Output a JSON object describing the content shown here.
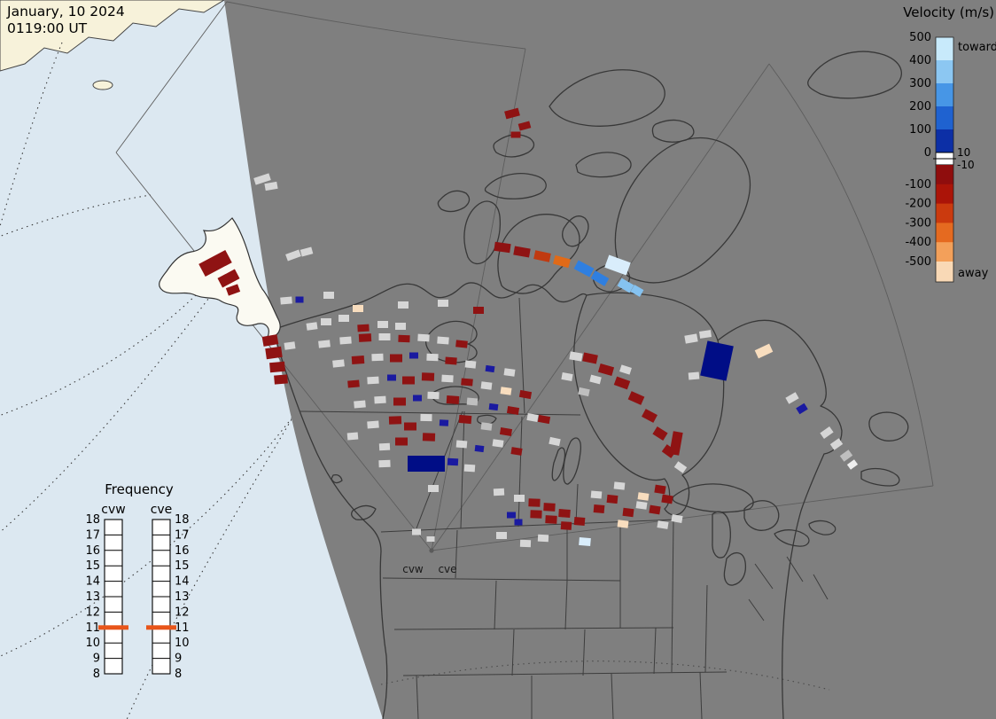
{
  "header": {
    "date_line": "January, 10 2024",
    "time_line": "0119:00 UT"
  },
  "velocity_legend": {
    "title": "Velocity (m/s)",
    "toward_label": "toward",
    "away_label": "away",
    "pos_ticks": [
      "500",
      "400",
      "300",
      "200",
      "100",
      "0"
    ],
    "zero_ticks": [
      "10",
      "-10"
    ],
    "neg_ticks": [
      "-100",
      "-200",
      "-300",
      "-400",
      "-500"
    ],
    "blue_segments": [
      "#c8eafb",
      "#8cc7f2",
      "#4796e6",
      "#1f62d0",
      "#0c2fa6"
    ],
    "zero_band": "#ffffff",
    "red_segments": [
      "#8f0d0d",
      "#ab1408",
      "#cb3a0e",
      "#e56a20",
      "#f3a05a"
    ],
    "end_cap_away": "#f9d9b6"
  },
  "frequency_panel": {
    "title": "Frequency",
    "columns": [
      {
        "label": "cvw"
      },
      {
        "label": "cve"
      }
    ],
    "scale": [
      "18",
      "17",
      "16",
      "15",
      "14",
      "13",
      "12",
      "11",
      "10",
      "9",
      "8"
    ],
    "marker_value": "11",
    "marker_color": "#e8551a"
  },
  "map": {
    "colors": {
      "ocean": "#dce8f1",
      "land_sunlit": "#f7f2da",
      "night_shade": "#7f7f7f",
      "alaska_land": "#fbfaf2",
      "outline": "#383838"
    },
    "radar_site_labels": [
      {
        "text": "cvw"
      },
      {
        "text": "cve"
      }
    ],
    "palette": {
      "dr": "#8f1313",
      "or": "#c03a10",
      "o": "#e06a18",
      "cr": "#f8ddbe",
      "g": "#d6d6d6",
      "g2": "#bfbfbf",
      "db": "#1a1aa0",
      "nb": "#000d86",
      "mb": "#2f7fe0",
      "lb": "#85c2f0",
      "pb": "#d9edfb",
      "w": "#efefef"
    },
    "cells": [
      [
        578,
        128,
        16,
        9,
        "dr",
        -15
      ],
      [
        592,
        142,
        13,
        8,
        "dr",
        -15
      ],
      [
        582,
        152,
        11,
        7,
        "dr",
        0
      ],
      [
        567,
        279,
        18,
        10,
        "dr",
        8
      ],
      [
        589,
        284,
        18,
        10,
        "dr",
        10
      ],
      [
        612,
        289,
        18,
        10,
        "or",
        12
      ],
      [
        634,
        295,
        18,
        10,
        "o",
        15
      ],
      [
        659,
        303,
        20,
        11,
        "mb",
        28
      ],
      [
        677,
        314,
        18,
        10,
        "mb",
        30
      ],
      [
        697,
        299,
        26,
        15,
        "pb",
        20
      ],
      [
        706,
        322,
        16,
        10,
        "lb",
        30
      ],
      [
        719,
        328,
        12,
        9,
        "lb",
        30
      ],
      [
        243,
        297,
        34,
        16,
        "dr",
        -28
      ],
      [
        258,
        314,
        22,
        12,
        "dr",
        -28
      ],
      [
        263,
        327,
        14,
        9,
        "dr",
        -20
      ],
      [
        296,
        202,
        18,
        8,
        "g",
        -18
      ],
      [
        306,
        210,
        14,
        8,
        "g",
        -10
      ],
      [
        331,
        288,
        16,
        8,
        "g",
        -20
      ],
      [
        346,
        284,
        13,
        8,
        "g",
        -15
      ],
      [
        323,
        339,
        13,
        8,
        "g",
        -5
      ],
      [
        338,
        338,
        9,
        7,
        "db",
        0
      ],
      [
        371,
        333,
        12,
        8,
        "g",
        0
      ],
      [
        404,
        348,
        12,
        8,
        "cr",
        0
      ],
      [
        455,
        344,
        12,
        8,
        "g",
        0
      ],
      [
        500,
        342,
        12,
        8,
        "g",
        0
      ],
      [
        540,
        350,
        12,
        8,
        "dr",
        0
      ],
      [
        368,
        363,
        12,
        8,
        "g",
        0
      ],
      [
        388,
        359,
        12,
        8,
        "g",
        0
      ],
      [
        305,
        384,
        17,
        11,
        "dr",
        -10
      ],
      [
        309,
        398,
        18,
        12,
        "dr",
        -8
      ],
      [
        313,
        414,
        17,
        11,
        "dr",
        -5
      ],
      [
        317,
        428,
        15,
        10,
        "dr",
        -5
      ],
      [
        327,
        390,
        12,
        8,
        "g",
        -8
      ],
      [
        352,
        368,
        12,
        8,
        "g",
        -8
      ],
      [
        410,
        370,
        13,
        8,
        "dr",
        -3
      ],
      [
        432,
        366,
        12,
        8,
        "g",
        0
      ],
      [
        452,
        368,
        12,
        8,
        "g",
        0
      ],
      [
        366,
        388,
        13,
        8,
        "g",
        -6
      ],
      [
        390,
        384,
        13,
        8,
        "g",
        -4
      ],
      [
        412,
        381,
        14,
        9,
        "dr",
        -3
      ],
      [
        434,
        380,
        13,
        8,
        "g",
        0
      ],
      [
        456,
        382,
        13,
        8,
        "dr",
        2
      ],
      [
        478,
        381,
        13,
        8,
        "g",
        3
      ],
      [
        500,
        384,
        13,
        8,
        "g",
        4
      ],
      [
        521,
        388,
        13,
        8,
        "dr",
        6
      ],
      [
        382,
        410,
        13,
        8,
        "g",
        -6
      ],
      [
        404,
        406,
        14,
        9,
        "dr",
        -4
      ],
      [
        426,
        403,
        13,
        8,
        "g",
        -2
      ],
      [
        447,
        404,
        14,
        9,
        "dr",
        0
      ],
      [
        467,
        401,
        10,
        7,
        "db",
        0
      ],
      [
        488,
        403,
        13,
        8,
        "g",
        2
      ],
      [
        509,
        407,
        13,
        8,
        "dr",
        4
      ],
      [
        531,
        411,
        12,
        8,
        "g",
        6
      ],
      [
        553,
        416,
        10,
        7,
        "db",
        8
      ],
      [
        575,
        420,
        12,
        8,
        "g",
        8
      ],
      [
        399,
        433,
        13,
        8,
        "dr",
        -5
      ],
      [
        421,
        429,
        13,
        8,
        "g",
        -3
      ],
      [
        442,
        426,
        10,
        7,
        "db",
        0
      ],
      [
        461,
        429,
        14,
        9,
        "dr",
        0
      ],
      [
        483,
        425,
        14,
        9,
        "dr",
        2
      ],
      [
        505,
        427,
        13,
        8,
        "g",
        3
      ],
      [
        527,
        431,
        13,
        8,
        "dr",
        5
      ],
      [
        549,
        435,
        12,
        8,
        "g",
        7
      ],
      [
        571,
        441,
        12,
        8,
        "cr",
        8
      ],
      [
        593,
        445,
        13,
        8,
        "dr",
        10
      ],
      [
        406,
        456,
        13,
        8,
        "g",
        -5
      ],
      [
        429,
        451,
        13,
        8,
        "g",
        -3
      ],
      [
        451,
        453,
        14,
        9,
        "dr",
        0
      ],
      [
        471,
        449,
        10,
        7,
        "db",
        0
      ],
      [
        489,
        446,
        13,
        8,
        "g",
        2
      ],
      [
        511,
        451,
        14,
        9,
        "dr",
        4
      ],
      [
        533,
        453,
        12,
        8,
        "g2",
        5
      ],
      [
        557,
        459,
        10,
        7,
        "db",
        7
      ],
      [
        579,
        463,
        13,
        8,
        "dr",
        9
      ],
      [
        601,
        471,
        12,
        8,
        "g",
        10
      ],
      [
        421,
        479,
        13,
        8,
        "g",
        -4
      ],
      [
        446,
        474,
        14,
        9,
        "dr",
        -2
      ],
      [
        463,
        481,
        14,
        9,
        "dr",
        0
      ],
      [
        481,
        471,
        13,
        8,
        "g",
        1
      ],
      [
        501,
        477,
        10,
        7,
        "db",
        3
      ],
      [
        525,
        473,
        14,
        9,
        "dr",
        5
      ],
      [
        549,
        481,
        12,
        8,
        "g2",
        7
      ],
      [
        571,
        487,
        13,
        8,
        "dr",
        9
      ],
      [
        614,
        473,
        13,
        8,
        "dr",
        10
      ],
      [
        626,
        498,
        12,
        8,
        "g",
        12
      ],
      [
        398,
        492,
        12,
        8,
        "g",
        -5
      ],
      [
        434,
        504,
        12,
        8,
        "g",
        -3
      ],
      [
        453,
        498,
        14,
        9,
        "dr",
        0
      ],
      [
        484,
        493,
        14,
        9,
        "dr",
        2
      ],
      [
        521,
        501,
        12,
        8,
        "g",
        5
      ],
      [
        541,
        506,
        10,
        7,
        "db",
        7
      ],
      [
        562,
        500,
        12,
        8,
        "g",
        8
      ],
      [
        583,
        509,
        12,
        8,
        "dr",
        9
      ],
      [
        434,
        523,
        13,
        8,
        "g",
        -2
      ],
      [
        481,
        523,
        42,
        18,
        "nb",
        0
      ],
      [
        511,
        521,
        12,
        8,
        "db",
        3
      ],
      [
        530,
        528,
        12,
        8,
        "g",
        4
      ],
      [
        650,
        402,
        14,
        9,
        "g",
        10
      ],
      [
        666,
        404,
        16,
        10,
        "dr",
        12
      ],
      [
        684,
        417,
        16,
        10,
        "dr",
        16
      ],
      [
        702,
        432,
        16,
        10,
        "dr",
        20
      ],
      [
        706,
        417,
        12,
        8,
        "g",
        18
      ],
      [
        718,
        449,
        16,
        10,
        "dr",
        24
      ],
      [
        733,
        469,
        15,
        10,
        "dr",
        28
      ],
      [
        745,
        489,
        14,
        10,
        "dr",
        32
      ],
      [
        755,
        509,
        13,
        10,
        "dr",
        36
      ],
      [
        763,
        500,
        11,
        26,
        "dr",
        10
      ],
      [
        768,
        527,
        12,
        8,
        "g",
        35
      ],
      [
        672,
        428,
        12,
        8,
        "g",
        14
      ],
      [
        659,
        442,
        12,
        8,
        "g2",
        12
      ],
      [
        640,
        425,
        12,
        8,
        "g",
        10
      ],
      [
        780,
        382,
        14,
        9,
        "g",
        -10
      ],
      [
        796,
        377,
        13,
        8,
        "g",
        -8
      ],
      [
        809,
        407,
        30,
        40,
        "nb",
        12
      ],
      [
        783,
        424,
        12,
        8,
        "g",
        -5
      ],
      [
        862,
        396,
        18,
        10,
        "cr",
        -25
      ],
      [
        894,
        449,
        13,
        8,
        "g",
        -30
      ],
      [
        905,
        461,
        11,
        8,
        "db",
        -32
      ],
      [
        933,
        488,
        13,
        8,
        "g",
        -35
      ],
      [
        944,
        501,
        12,
        8,
        "g",
        -35
      ],
      [
        955,
        514,
        12,
        8,
        "g2",
        -36
      ],
      [
        962,
        524,
        10,
        7,
        "w",
        -36
      ],
      [
        563,
        555,
        12,
        8,
        "g",
        -3
      ],
      [
        586,
        562,
        12,
        8,
        "g",
        0
      ],
      [
        577,
        581,
        10,
        7,
        "db",
        0
      ],
      [
        585,
        589,
        9,
        7,
        "db",
        0
      ],
      [
        603,
        567,
        13,
        9,
        "dr",
        2
      ],
      [
        605,
        580,
        13,
        9,
        "dr",
        2
      ],
      [
        620,
        572,
        13,
        9,
        "dr",
        3
      ],
      [
        622,
        586,
        13,
        9,
        "dr",
        3
      ],
      [
        637,
        579,
        13,
        9,
        "dr",
        4
      ],
      [
        639,
        593,
        12,
        9,
        "dr",
        4
      ],
      [
        654,
        588,
        12,
        9,
        "dr",
        5
      ],
      [
        566,
        604,
        12,
        8,
        "g",
        0
      ],
      [
        593,
        613,
        12,
        8,
        "g",
        2
      ],
      [
        613,
        607,
        12,
        8,
        "g",
        3
      ],
      [
        660,
        611,
        13,
        9,
        "pb",
        5
      ],
      [
        676,
        574,
        12,
        9,
        "dr",
        5
      ],
      [
        691,
        563,
        12,
        9,
        "dr",
        6
      ],
      [
        673,
        558,
        12,
        8,
        "g",
        5
      ],
      [
        703,
        591,
        12,
        8,
        "cr",
        7
      ],
      [
        709,
        578,
        12,
        9,
        "dr",
        7
      ],
      [
        724,
        570,
        12,
        8,
        "g",
        8
      ],
      [
        726,
        560,
        12,
        8,
        "cr",
        8
      ],
      [
        739,
        575,
        12,
        9,
        "dr",
        9
      ],
      [
        753,
        563,
        12,
        9,
        "dr",
        9
      ],
      [
        748,
        592,
        12,
        8,
        "g",
        9
      ],
      [
        764,
        585,
        12,
        8,
        "g",
        10
      ],
      [
        745,
        552,
        12,
        9,
        "dr",
        9
      ],
      [
        699,
        548,
        12,
        8,
        "g",
        6
      ],
      [
        489,
        551,
        12,
        8,
        "g",
        0
      ],
      [
        470,
        600,
        10,
        7,
        "g",
        0
      ],
      [
        486,
        608,
        9,
        6,
        "g",
        0
      ]
    ]
  }
}
